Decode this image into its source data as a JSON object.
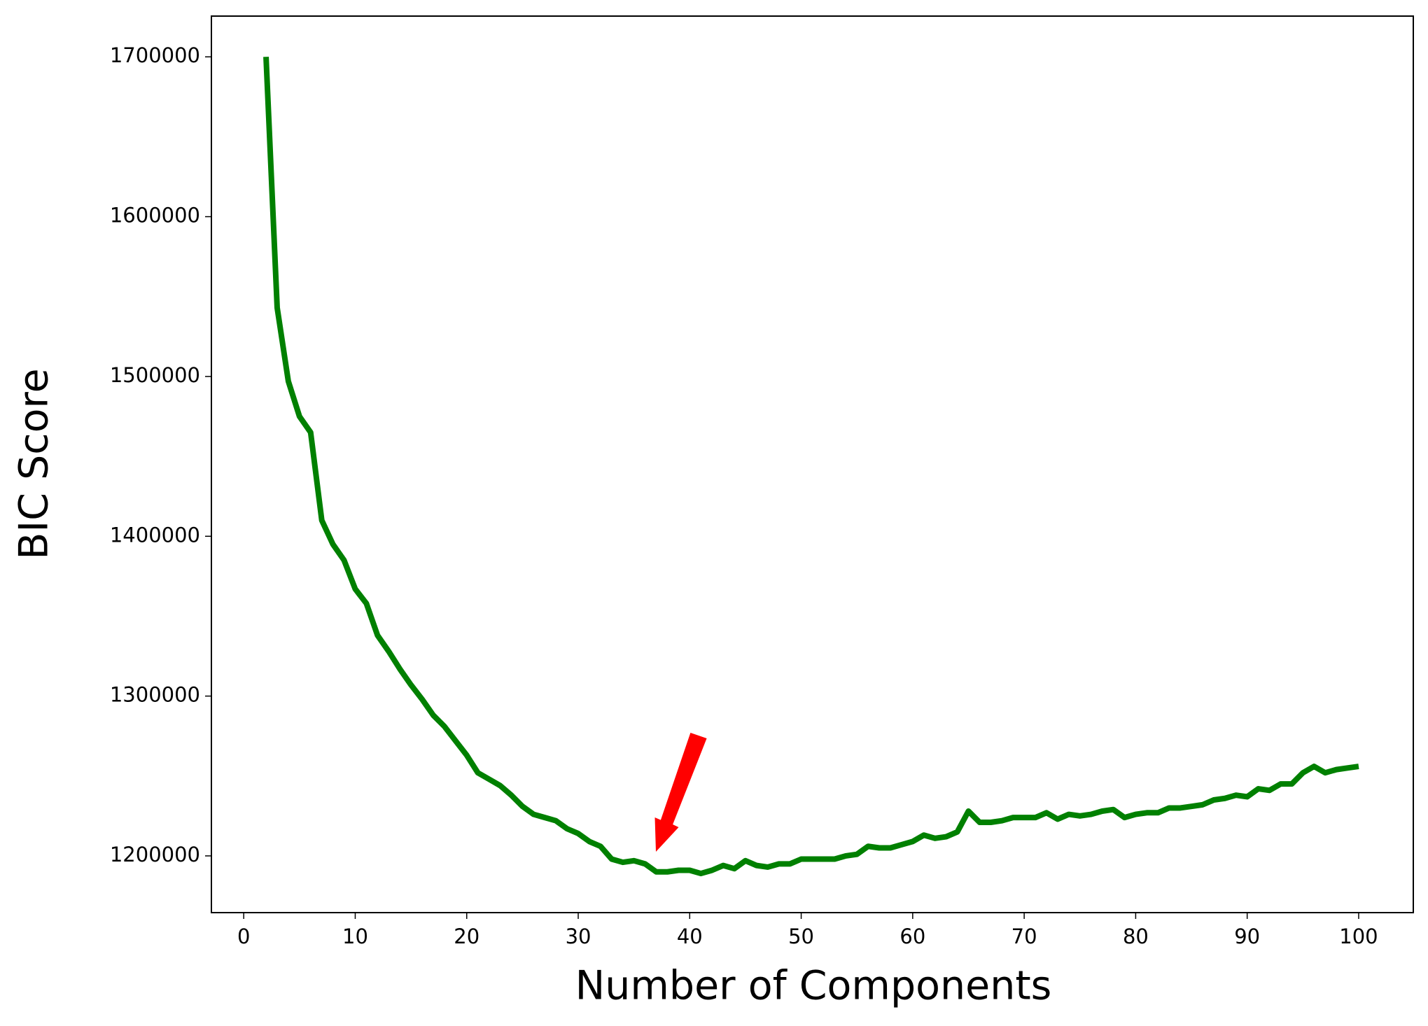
{
  "chart_data": {
    "type": "line",
    "xlabel": "Number of Components",
    "ylabel": "BIC Score",
    "x": [
      2,
      3,
      4,
      5,
      6,
      7,
      8,
      9,
      10,
      11,
      12,
      13,
      14,
      15,
      16,
      17,
      18,
      19,
      20,
      21,
      22,
      23,
      24,
      25,
      26,
      27,
      28,
      29,
      30,
      31,
      32,
      33,
      34,
      35,
      36,
      37,
      38,
      39,
      40,
      41,
      42,
      43,
      44,
      45,
      46,
      47,
      48,
      49,
      50,
      51,
      52,
      53,
      54,
      55,
      56,
      57,
      58,
      59,
      60,
      61,
      62,
      63,
      64,
      65,
      66,
      67,
      68,
      69,
      70,
      71,
      72,
      73,
      74,
      75,
      76,
      77,
      78,
      79,
      80,
      81,
      82,
      83,
      84,
      85,
      86,
      87,
      88,
      89,
      90,
      91,
      92,
      93,
      94,
      95,
      96,
      97,
      98,
      99,
      100
    ],
    "values": [
      1700000,
      1543000,
      1497000,
      1475000,
      1465000,
      1410000,
      1395000,
      1385000,
      1367000,
      1358000,
      1338000,
      1328000,
      1317000,
      1307000,
      1298000,
      1288000,
      1281000,
      1272000,
      1263000,
      1252000,
      1248000,
      1244000,
      1238000,
      1231000,
      1226000,
      1224000,
      1222000,
      1217000,
      1214000,
      1209000,
      1206000,
      1198000,
      1196000,
      1197000,
      1195000,
      1190000,
      1190000,
      1191000,
      1191000,
      1189000,
      1191000,
      1194000,
      1192000,
      1197000,
      1194000,
      1193000,
      1195000,
      1195000,
      1198000,
      1198000,
      1198000,
      1198000,
      1200000,
      1201000,
      1206000,
      1205000,
      1205000,
      1207000,
      1209000,
      1213000,
      1211000,
      1212000,
      1215000,
      1228000,
      1221000,
      1221000,
      1222000,
      1224000,
      1224000,
      1224000,
      1227000,
      1223000,
      1226000,
      1225000,
      1226000,
      1228000,
      1229000,
      1224000,
      1226000,
      1227000,
      1227000,
      1230000,
      1230000,
      1231000,
      1232000,
      1235000,
      1236000,
      1238000,
      1237000,
      1242000,
      1241000,
      1245000,
      1245000,
      1252000,
      1256000,
      1252000,
      1254000,
      1255000,
      1256000
    ],
    "color": "#008000",
    "xlim": [
      -2.9,
      104.9
    ],
    "xticks": [
      0,
      10,
      20,
      30,
      40,
      50,
      60,
      70,
      80,
      90,
      100
    ],
    "ylim": [
      1164500,
      1725500
    ],
    "yticks": [
      1200000,
      1300000,
      1400000,
      1500000,
      1600000,
      1700000
    ]
  }
}
